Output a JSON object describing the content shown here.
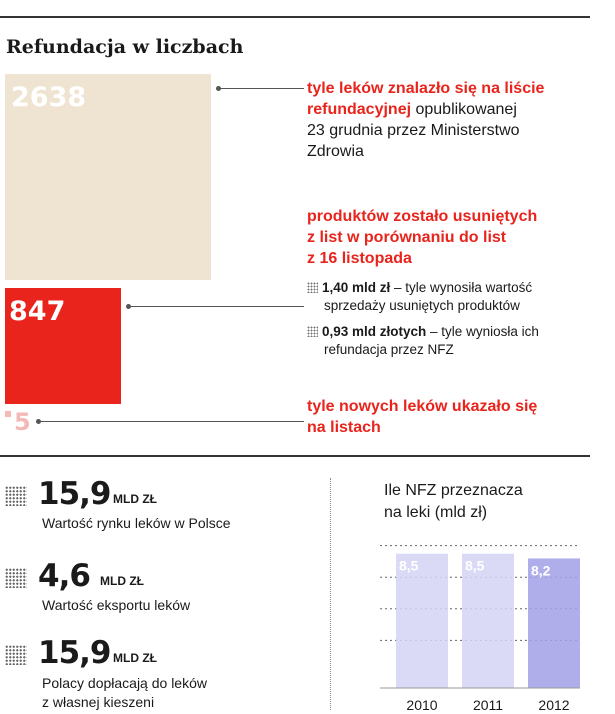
{
  "title": "Refundacja w liczbach",
  "boxes": [
    {
      "value": "2638",
      "color": "#efe3d1"
    },
    {
      "value": "847",
      "color": "#e8241c"
    },
    {
      "value": "5",
      "color": "#f3b9b6"
    }
  ],
  "note1": {
    "highlight_1": "tyle leków znalazło się na liście",
    "highlight_2": "refundacyjnej",
    "rest_1": " opublikowanej",
    "line_2": "23 grudnia przez Ministerstwo",
    "line_3": "Zdrowia"
  },
  "note2": {
    "line_1": "produktów zostało usuniętych",
    "line_2": "z list w porównaniu do list",
    "line_3": "z 16 listopada"
  },
  "bullets": [
    {
      "bold": "1,40 mld zł",
      "text_1": " – tyle wynosiła wartość",
      "text_2": "sprzedaży usuniętych produktów"
    },
    {
      "bold": "0,93 mld złotych",
      "text_1": " – tyle wyniosła ich",
      "text_2": "refundacja przez NFZ"
    }
  ],
  "note3": {
    "line_1": "tyle nowych leków ukazało się",
    "line_2": "na listach"
  },
  "stats": [
    {
      "value": "15,9",
      "unit": "MLD ZŁ",
      "desc_1": "Wartość rynku leków w Polsce",
      "desc_2": ""
    },
    {
      "value": "4,6",
      "unit": "MLD ZŁ",
      "desc_1": "Wartość eksportu leków",
      "desc_2": ""
    },
    {
      "value": "15,9",
      "unit": "MLD ZŁ",
      "desc_1": "Polacy dopłacają do leków",
      "desc_2": "z własnej kieszeni"
    }
  ],
  "chart_title_1": "Ile NFZ przeznacza",
  "chart_title_2": "na leki (mld zł)",
  "chart_data": {
    "type": "bar",
    "title": "Ile NFZ przeznacza na leki (mld zł)",
    "categories": [
      "2010",
      "2011",
      "2012"
    ],
    "values": [
      8.5,
      8.5,
      8.2
    ],
    "value_labels": [
      "8,5",
      "8,5",
      "8,2"
    ],
    "colors": [
      "#d4d3f5",
      "#d4d3f5",
      "#a29fe8"
    ],
    "ylim": [
      0,
      10
    ],
    "grid": true
  }
}
